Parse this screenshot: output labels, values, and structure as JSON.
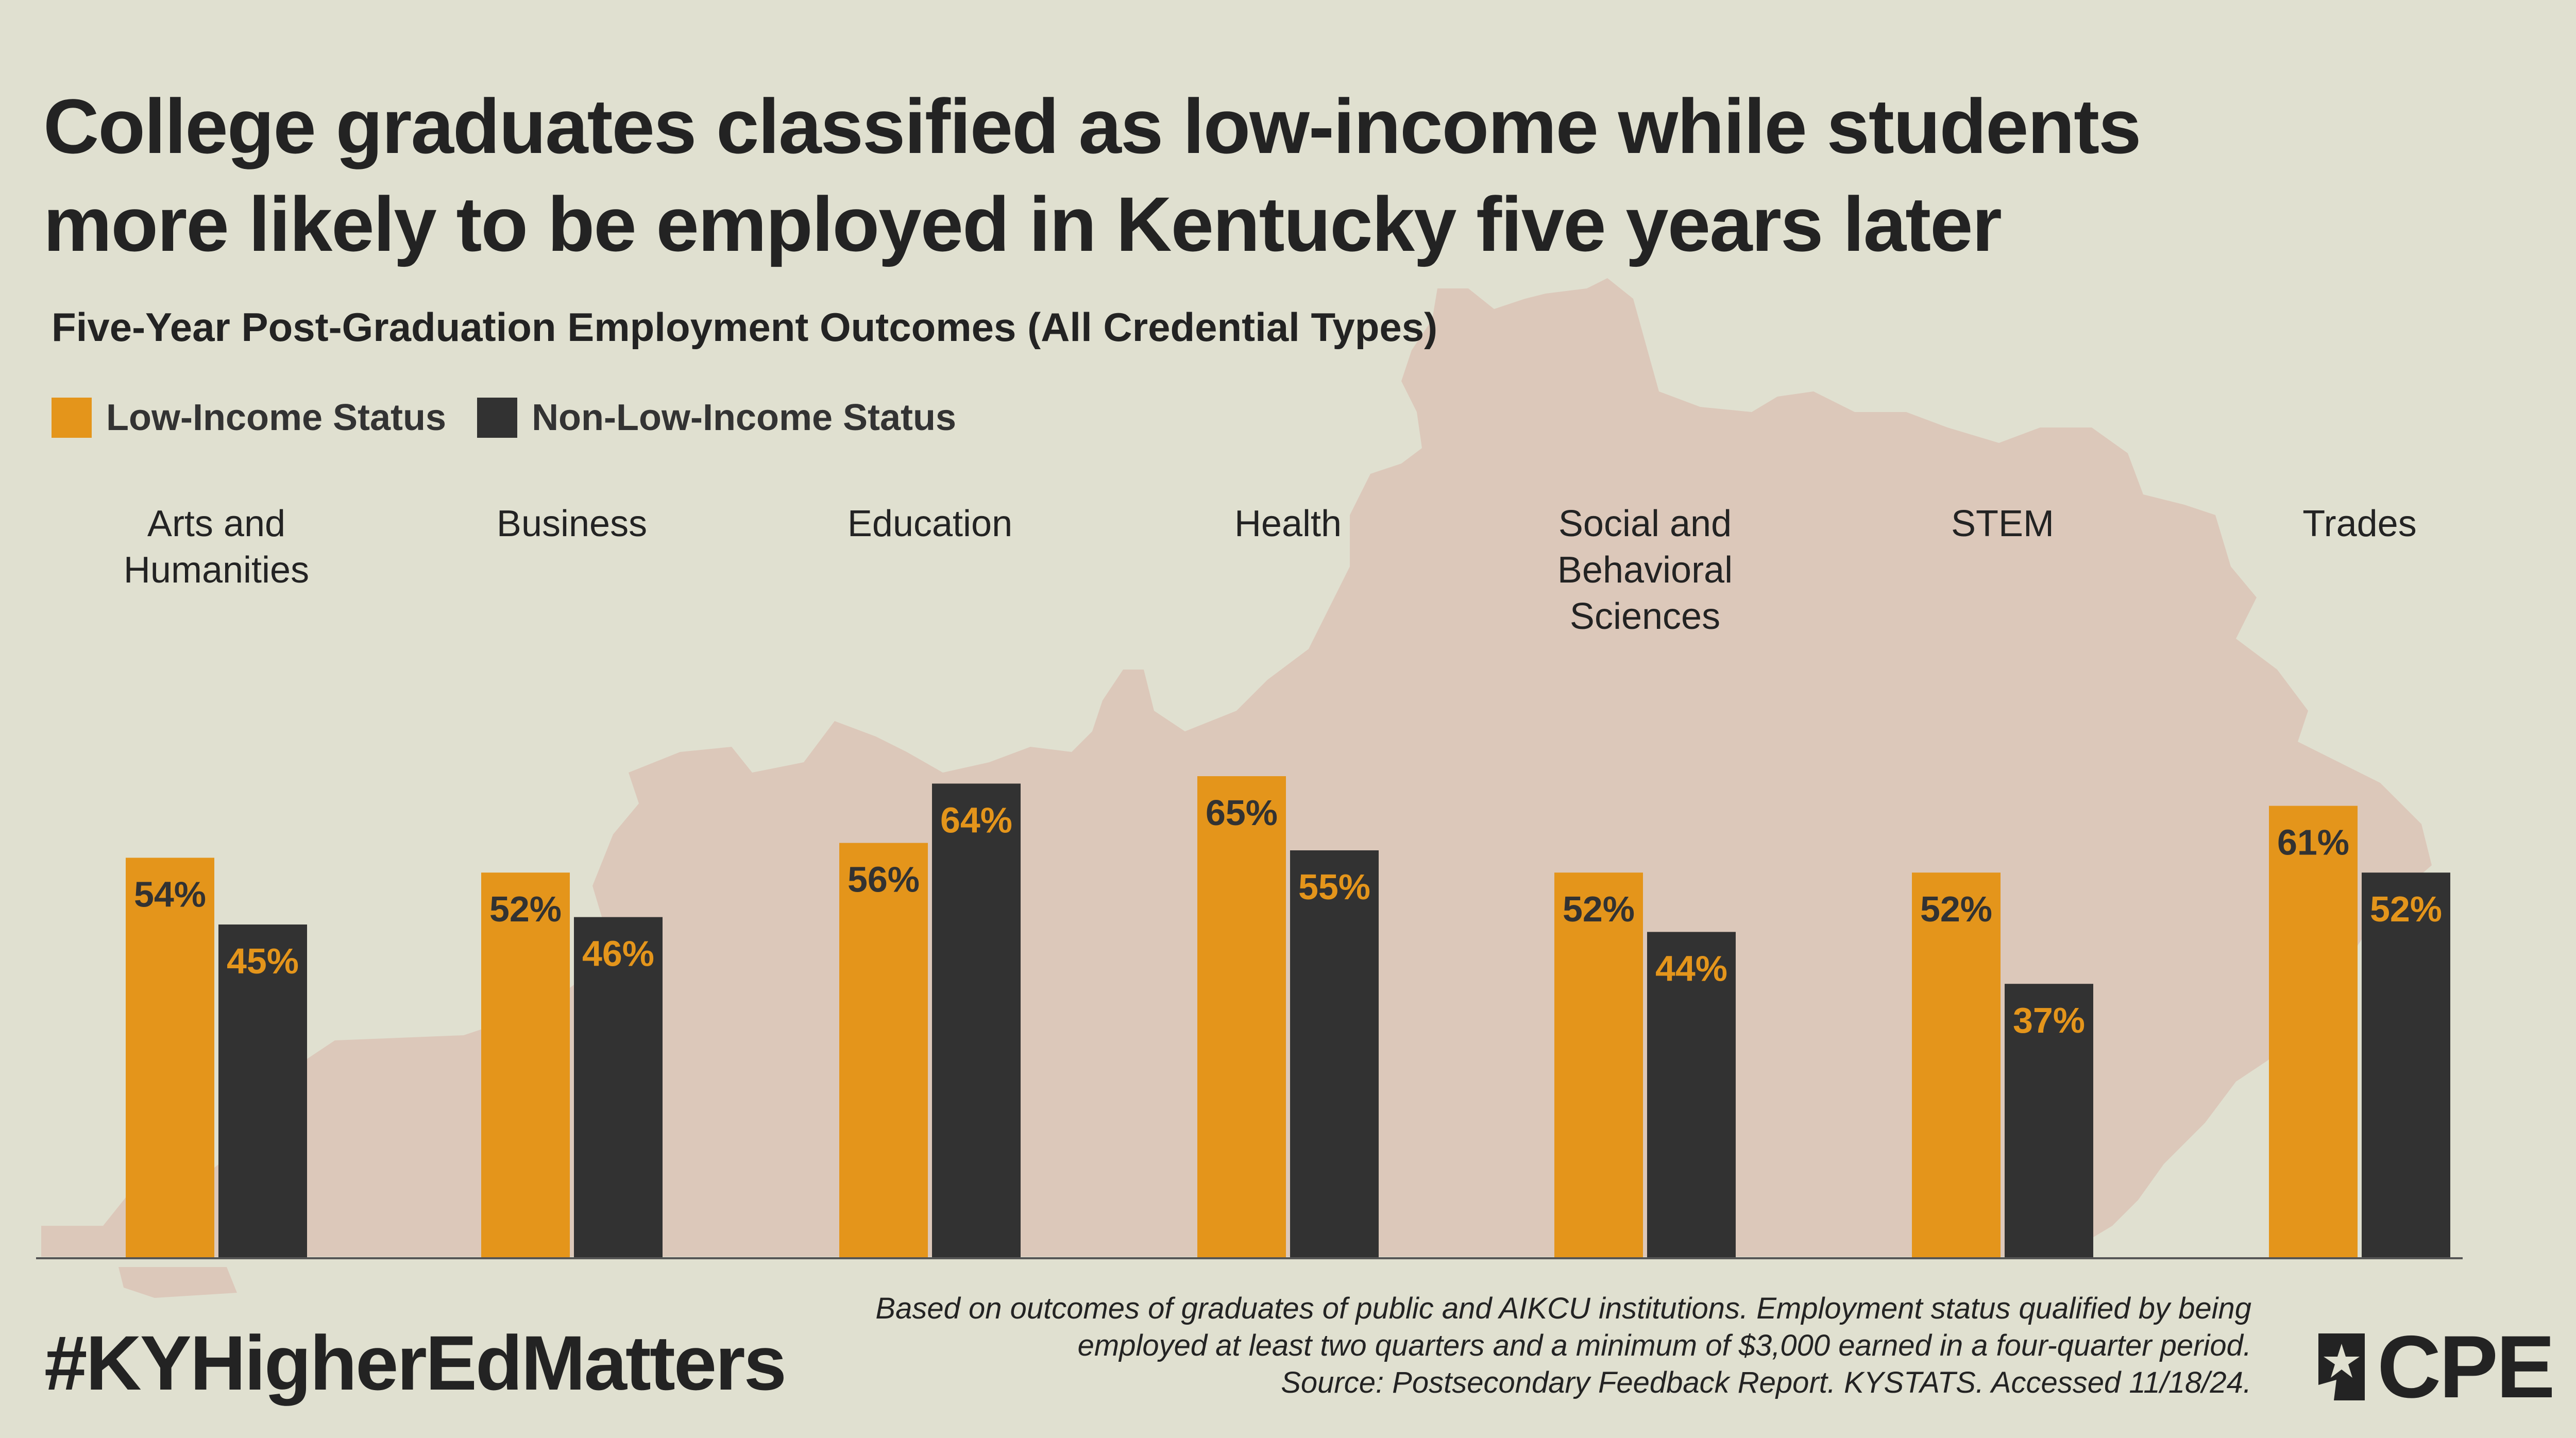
{
  "title": {
    "line1": "College graduates classified as low-income while students",
    "line2": "more likely to be employed in Kentucky five years later"
  },
  "subtitle": "Five-Year Post-Graduation Employment Outcomes (All Credential Types)",
  "legend": [
    {
      "label": "Low-Income Status",
      "color": "#e4951b"
    },
    {
      "label": "Non-Low-Income Status",
      "color": "#323232"
    }
  ],
  "chart_data": {
    "type": "bar",
    "title": "Five-Year Post-Graduation Employment Outcomes (All Credential Types)",
    "categories": [
      [
        "Arts and",
        "Humanities"
      ],
      [
        "Business"
      ],
      [
        "Education"
      ],
      [
        "Health"
      ],
      [
        "Social and",
        "Behavioral",
        "Sciences"
      ],
      [
        "STEM"
      ],
      [
        "Trades"
      ]
    ],
    "series": [
      {
        "name": "Low-Income Status",
        "color": "#e4951b",
        "label_color": "#323232",
        "values": [
          54,
          52,
          56,
          65,
          52,
          52,
          61
        ]
      },
      {
        "name": "Non-Low-Income Status",
        "color": "#323232",
        "label_color": "#e4951b",
        "values": [
          45,
          46,
          64,
          55,
          44,
          37,
          52
        ]
      }
    ],
    "value_suffix": "%",
    "ylim": [
      0,
      100
    ],
    "xlabel": "",
    "ylabel": ""
  },
  "hashtag": "#KYHigherEdMatters",
  "footnote": [
    "Based on outcomes of graduates of public and AIKCU institutions. Employment status qualified by being",
    "employed at least two quarters and a minimum of $3,000 earned in a four-quarter period.",
    "Source: Postsecondary Feedback Report. KYSTATS. Accessed 11/18/24."
  ],
  "logo": {
    "text": "CPE",
    "icon": "kentucky-star-icon"
  },
  "colors": {
    "background": "#e0e0d0",
    "map": "#dcc8ba"
  }
}
